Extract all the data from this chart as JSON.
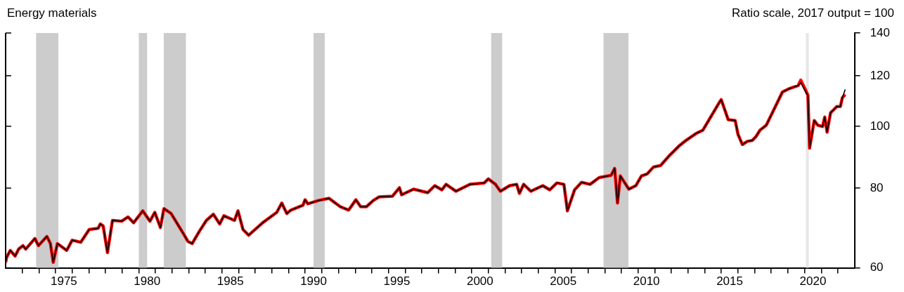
{
  "chart_data": {
    "type": "line",
    "title": "Energy materials",
    "ylabel": "Ratio scale, 2017 output = 100",
    "log": true,
    "xlim": [
      1972,
      2023
    ],
    "ylim": [
      60,
      140
    ],
    "yticks": [
      60,
      80,
      100,
      120,
      140
    ],
    "xticks": [
      {
        "value": 1973,
        "label": null
      },
      {
        "value": 1974,
        "label": null
      },
      {
        "value": 1975,
        "label": null
      },
      {
        "value": 1976,
        "label": null
      },
      {
        "value": 1977,
        "label": null
      },
      {
        "value": 1978,
        "label": null
      },
      {
        "value": 1979,
        "label": null
      },
      {
        "value": 1980,
        "label": null
      },
      {
        "value": 1981,
        "label": null
      },
      {
        "value": 1982,
        "label": null
      },
      {
        "value": 1983,
        "label": null
      },
      {
        "value": 1984,
        "label": null
      },
      {
        "value": 1985,
        "label": null
      },
      {
        "value": 1986,
        "label": null
      },
      {
        "value": 1987,
        "label": null
      },
      {
        "value": 1988,
        "label": null
      },
      {
        "value": 1989,
        "label": null
      },
      {
        "value": 1990,
        "label": null
      },
      {
        "value": 1991,
        "label": null
      },
      {
        "value": 1992,
        "label": null
      },
      {
        "value": 1993,
        "label": null
      },
      {
        "value": 1994,
        "label": null
      },
      {
        "value": 1995,
        "label": null
      },
      {
        "value": 1996,
        "label": null
      },
      {
        "value": 1997,
        "label": null
      },
      {
        "value": 1998,
        "label": null
      },
      {
        "value": 1999,
        "label": null
      },
      {
        "value": 2000,
        "label": null
      },
      {
        "value": 2001,
        "label": null
      },
      {
        "value": 2002,
        "label": null
      },
      {
        "value": 2003,
        "label": null
      },
      {
        "value": 2004,
        "label": null
      },
      {
        "value": 2005,
        "label": null
      },
      {
        "value": 2006,
        "label": null
      },
      {
        "value": 2007,
        "label": null
      },
      {
        "value": 2008,
        "label": null
      },
      {
        "value": 2009,
        "label": null
      },
      {
        "value": 2010,
        "label": null
      },
      {
        "value": 2011,
        "label": null
      },
      {
        "value": 2012,
        "label": null
      },
      {
        "value": 2013,
        "label": null
      },
      {
        "value": 2014,
        "label": null
      },
      {
        "value": 2015,
        "label": null
      },
      {
        "value": 2016,
        "label": null
      },
      {
        "value": 2017,
        "label": null
      },
      {
        "value": 2018,
        "label": null
      },
      {
        "value": 2019,
        "label": null
      },
      {
        "value": 2020,
        "label": null
      },
      {
        "value": 2021,
        "label": null
      },
      {
        "value": 2022,
        "label": null
      },
      {
        "value": 1975.5,
        "label": "1975"
      },
      {
        "value": 1980.5,
        "label": "1980"
      },
      {
        "value": 1985.5,
        "label": "1985"
      },
      {
        "value": 1990.5,
        "label": "1990"
      },
      {
        "value": 1995.5,
        "label": "1995"
      },
      {
        "value": 2000.5,
        "label": "2000"
      },
      {
        "value": 2005.5,
        "label": "2005"
      },
      {
        "value": 2010.5,
        "label": "2010"
      },
      {
        "value": 2015.5,
        "label": "2015"
      },
      {
        "value": 2020.5,
        "label": "2020"
      }
    ],
    "bands": [
      {
        "axis": "x",
        "from": 1973.83,
        "to": 1975.17,
        "color": "#cccccc"
      },
      {
        "axis": "x",
        "from": 1980.0,
        "to": 1980.5,
        "color": "#cccccc"
      },
      {
        "axis": "x",
        "from": 1981.5,
        "to": 1982.83,
        "color": "#cccccc"
      },
      {
        "axis": "x",
        "from": 1990.5,
        "to": 1991.17,
        "color": "#cccccc"
      },
      {
        "axis": "x",
        "from": 2001.17,
        "to": 2001.83,
        "color": "#cccccc"
      },
      {
        "axis": "x",
        "from": 2007.92,
        "to": 2009.42,
        "color": "#cccccc"
      },
      {
        "axis": "x",
        "from": 2020.08,
        "to": 2020.25,
        "color": "#e6e6e6"
      }
    ],
    "x": [
      1972.0,
      1972.06,
      1972.28,
      1972.57,
      1972.78,
      1973.04,
      1973.21,
      1973.76,
      1973.97,
      1974.48,
      1974.69,
      1974.86,
      1975.11,
      1975.67,
      1976.0,
      1976.51,
      1977.02,
      1977.56,
      1977.69,
      1977.86,
      1978.12,
      1978.42,
      1978.97,
      1979.35,
      1979.69,
      1980.24,
      1980.67,
      1980.96,
      1981.3,
      1981.51,
      1981.94,
      1982.66,
      1982.95,
      1983.21,
      1983.63,
      1984.06,
      1984.48,
      1984.86,
      1985.11,
      1985.75,
      1985.96,
      1986.26,
      1986.6,
      1987.44,
      1988.29,
      1988.59,
      1988.89,
      1989.14,
      1989.86,
      1989.99,
      1990.16,
      1990.79,
      1991.43,
      1992.11,
      1992.61,
      1993.04,
      1993.33,
      1993.67,
      1994.09,
      1994.43,
      1995.24,
      1995.66,
      1995.79,
      1996.51,
      1997.36,
      1997.78,
      1998.21,
      1998.46,
      1999.05,
      1999.9,
      2000.75,
      2001.0,
      2001.43,
      2001.72,
      2002.28,
      2002.7,
      2002.87,
      2003.12,
      2003.55,
      2004.27,
      2004.69,
      2005.12,
      2005.54,
      2005.75,
      2006.18,
      2006.6,
      2007.11,
      2007.66,
      2008.38,
      2008.59,
      2008.76,
      2008.93,
      2009.44,
      2009.86,
      2010.2,
      2010.54,
      2010.92,
      2011.35,
      2011.9,
      2012.45,
      2012.87,
      2013.47,
      2013.89,
      2014.31,
      2014.86,
      2014.99,
      2015.41,
      2015.83,
      2016.0,
      2016.26,
      2016.56,
      2016.85,
      2017.06,
      2017.32,
      2017.7,
      2018.04,
      2018.67,
      2019.1,
      2019.61,
      2019.77,
      2020.07,
      2020.2,
      2020.3,
      2020.58,
      2020.79,
      2021.08,
      2021.21,
      2021.35,
      2021.56,
      2021.77,
      2021.94,
      2022.15,
      2022.27,
      2022.44
    ],
    "series": [
      {
        "color": "#ff0000",
        "values": [
          61.2,
          62.3,
          63.9,
          62.6,
          64.2,
          65.0,
          64.2,
          66.7,
          65.0,
          67.2,
          65.5,
          61.2,
          65.5,
          63.9,
          66.3,
          65.8,
          68.9,
          69.2,
          70.3,
          69.8,
          63.4,
          71.2,
          71.0,
          72.1,
          70.6,
          73.7,
          71.0,
          73.3,
          69.4,
          74.3,
          73.0,
          68.0,
          66.0,
          65.5,
          68.4,
          71.2,
          72.8,
          70.3,
          72.4,
          71.2,
          73.7,
          68.9,
          67.5,
          70.6,
          73.3,
          75.8,
          73.0,
          73.9,
          75.2,
          76.7,
          75.6,
          76.5,
          77.1,
          74.8,
          73.9,
          76.7,
          74.8,
          74.8,
          76.5,
          77.5,
          77.7,
          80.1,
          78.1,
          79.7,
          78.7,
          80.7,
          79.5,
          81.1,
          79.1,
          81.1,
          81.5,
          82.7,
          81.1,
          79.1,
          80.7,
          81.1,
          78.5,
          81.1,
          79.1,
          80.7,
          79.5,
          81.5,
          81.1,
          73.7,
          79.5,
          81.7,
          81.1,
          83.1,
          83.8,
          85.9,
          75.8,
          83.6,
          79.7,
          80.7,
          83.6,
          84.2,
          86.3,
          86.8,
          90.1,
          93.1,
          95.0,
          97.4,
          98.6,
          102.9,
          108.8,
          110.1,
          102.4,
          102.1,
          97.1,
          93.6,
          94.7,
          95.0,
          96.2,
          98.6,
          100.4,
          104.7,
          113.2,
          114.6,
          115.8,
          118.1,
          113.8,
          111.8,
          92.4,
          102.1,
          100.4,
          99.9,
          103.4,
          97.9,
          105.0,
          106.3,
          107.4,
          107.4,
          110.9,
          112.1
        ]
      },
      {
        "color": "#000000",
        "values": [
          61.2,
          62.3,
          63.9,
          62.6,
          64.2,
          65.0,
          64.2,
          66.7,
          65.0,
          67.2,
          65.5,
          61.2,
          65.5,
          63.9,
          66.3,
          65.8,
          68.9,
          69.2,
          70.3,
          69.8,
          63.4,
          71.2,
          71.0,
          72.1,
          70.6,
          73.7,
          71.0,
          73.3,
          69.4,
          74.3,
          73.0,
          68.0,
          66.0,
          65.5,
          68.4,
          71.2,
          72.8,
          70.3,
          72.4,
          71.2,
          73.7,
          68.9,
          67.5,
          70.6,
          73.3,
          75.8,
          73.0,
          73.9,
          75.2,
          76.7,
          75.6,
          76.5,
          77.1,
          74.8,
          73.9,
          76.7,
          74.8,
          74.8,
          76.5,
          77.5,
          77.7,
          80.1,
          78.1,
          79.7,
          78.7,
          80.7,
          79.5,
          81.1,
          79.1,
          81.1,
          81.5,
          82.7,
          81.1,
          79.1,
          80.7,
          81.1,
          78.5,
          81.1,
          79.1,
          80.7,
          79.5,
          81.5,
          81.1,
          73.7,
          79.5,
          81.7,
          81.1,
          83.1,
          83.8,
          85.9,
          75.8,
          83.6,
          79.7,
          80.7,
          83.6,
          84.2,
          86.3,
          86.8,
          90.1,
          93.1,
          95.0,
          97.4,
          98.6,
          102.9,
          108.8,
          110.1,
          102.4,
          102.1,
          97.1,
          93.6,
          94.7,
          95.0,
          96.2,
          98.6,
          100.4,
          104.7,
          113.2,
          114.6,
          115.8,
          117.0,
          113.2,
          111.8,
          92.4,
          102.1,
          100.4,
          99.9,
          103.4,
          97.9,
          105.0,
          106.3,
          107.4,
          107.4,
          110.9,
          114.2
        ]
      }
    ]
  }
}
